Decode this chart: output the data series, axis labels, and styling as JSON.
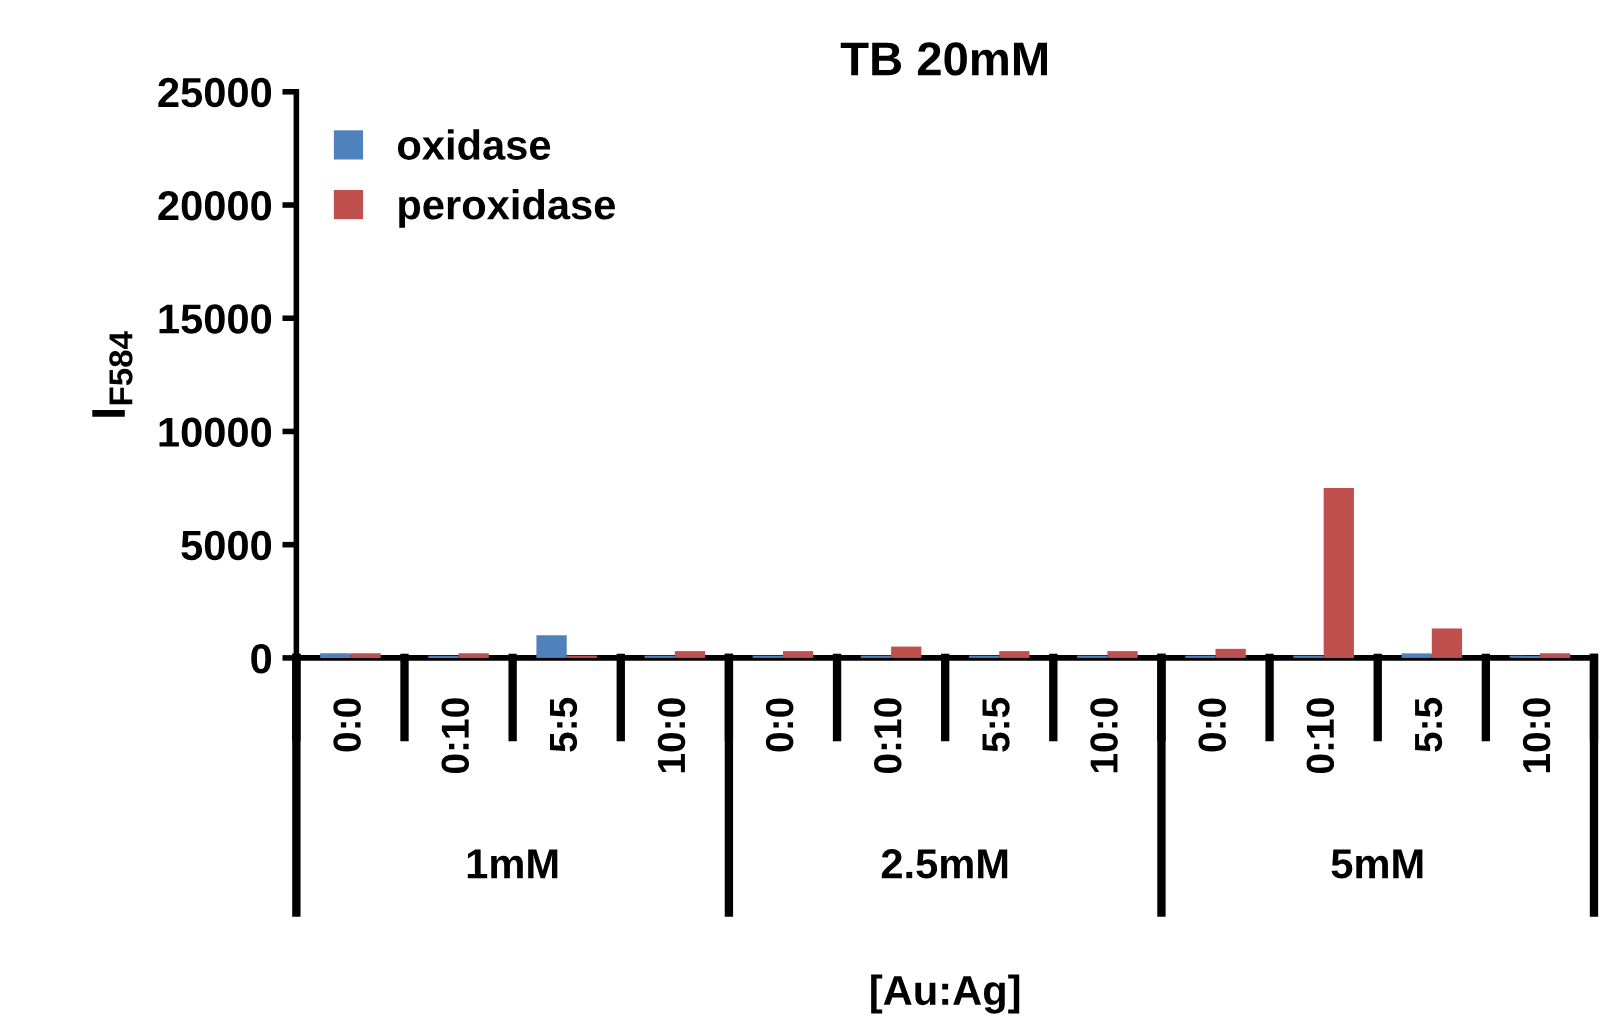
{
  "chart_data": {
    "type": "bar",
    "title": "TB 20mM",
    "xlabel": "[Au:Ag]",
    "ylabel": "I$_{F584}$",
    "categories": [
      "0:0",
      "0:10",
      "5:5",
      "10:0",
      "0:0",
      "0:10",
      "5:5",
      "10:0",
      "0:0",
      "0:10",
      "5:5",
      "10:0"
    ],
    "annotations": [
      "1mM",
      "2.5mM",
      "5mM"
    ],
    "series": [
      {
        "name": "oxidase",
        "color": "#4f81bd",
        "values": [
          200,
          100,
          1000,
          100,
          100,
          100,
          100,
          100,
          100,
          100,
          200,
          100
        ]
      },
      {
        "name": "peroxidase",
        "color": "#c0504d",
        "values": [
          200,
          200,
          100,
          300,
          300,
          500,
          300,
          300,
          400,
          7500,
          1300,
          200
        ]
      }
    ],
    "ylim": [
      0,
      25000
    ],
    "yticks": [
      0,
      5000,
      10000,
      15000,
      20000,
      25000
    ],
    "grid": false,
    "legend": "top left"
  }
}
